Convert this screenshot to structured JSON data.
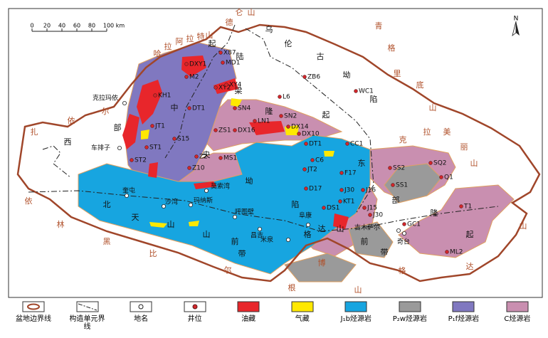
{
  "scale_labels": [
    "0",
    "20",
    "40",
    "60",
    "80",
    "100 km"
  ],
  "north": "N",
  "mountain_chars": [
    "扎",
    "依",
    "尔",
    "哈",
    "拉",
    "阿",
    "拉",
    "特",
    "山",
    "德",
    "仑",
    "山",
    "青",
    "格",
    "里",
    "底",
    "山",
    "克",
    "拉",
    "美",
    "丽",
    "山",
    "山",
    "依",
    "林",
    "黑",
    "比",
    "尔",
    "根",
    "山",
    "博",
    "格",
    "达"
  ],
  "unit_chars": [
    "乌",
    "伦",
    "古",
    "坳",
    "陷",
    "陆",
    "梁",
    "隆",
    "起",
    "起",
    "中",
    "部",
    "西",
    "央",
    "坳",
    "陷",
    "东",
    "部",
    "隆",
    "起",
    "北",
    "天",
    "山",
    "山",
    "前",
    "带",
    "格",
    "达",
    "山",
    "前",
    "带"
  ],
  "places": [
    "克拉玛依",
    "车排子",
    "奎屯",
    "沙湾",
    "玛纳斯",
    "呼图壁",
    "昌吉",
    "米泉",
    "阜康",
    "吉木萨尔",
    "奇台",
    "莫索湾"
  ],
  "wells": [
    "X87",
    "DXY1",
    "MD1",
    "M2",
    "XY2",
    "XY4",
    "ZB6",
    "WC1",
    "L6",
    "KH1",
    "DT1",
    "SN4",
    "LN1",
    "SN2",
    "DX14",
    "DX10",
    "JT1",
    "S15",
    "ZS1",
    "DX16",
    "DT1",
    "CC1",
    "ST1",
    "Z2",
    "MS1",
    "C6",
    "JT2",
    "SS2",
    "SQ2",
    "ST2",
    "Z10",
    "F17",
    "Q1",
    "SS1",
    "D17",
    "J30",
    "J16",
    "KT1",
    "DS1",
    "J15",
    "J30",
    "GC1",
    "T1",
    "ML2"
  ],
  "legend": [
    "盆地边界线",
    "构造单元界线",
    "地名",
    "井位",
    "油藏",
    "气藏",
    "J₁b烃源岩",
    "P₂w烃源岩",
    "P₁f烃源岩",
    "C烃源岩"
  ]
}
